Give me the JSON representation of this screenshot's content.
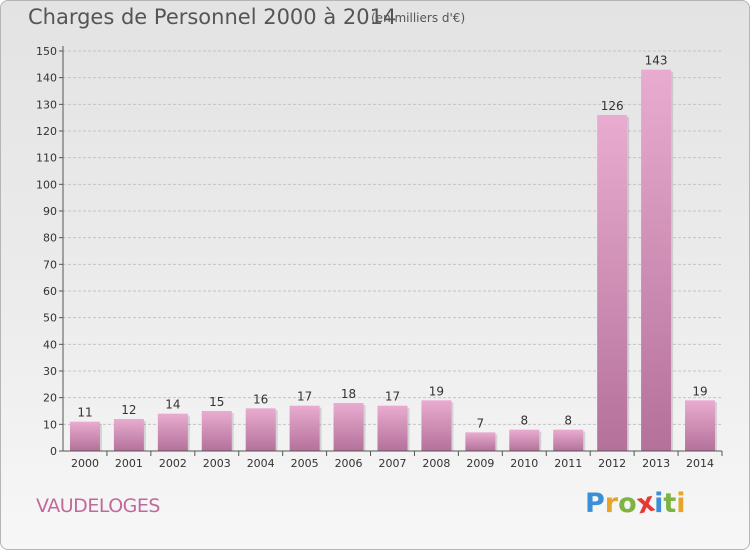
{
  "header": {
    "title": "Charges de Personnel 2000 à 2014",
    "subtitle": "(en milliers d'€)"
  },
  "footer": {
    "commune": "VAUDELOGES",
    "logo": "Proxiti"
  },
  "colors": {
    "bar_top": "#e9acd0",
    "bar_bottom": "#b4719a",
    "commune_text": "#c06a9c"
  },
  "chart_data": {
    "type": "bar",
    "categories": [
      "2000",
      "2001",
      "2002",
      "2003",
      "2004",
      "2005",
      "2006",
      "2007",
      "2008",
      "2009",
      "2010",
      "2011",
      "2012",
      "2013",
      "2014"
    ],
    "values": [
      11,
      12,
      14,
      15,
      16,
      17,
      18,
      17,
      19,
      7,
      8,
      8,
      126,
      143,
      19
    ],
    "title": "Charges de Personnel 2000 à 2014",
    "subtitle": "(en milliers d'€)",
    "xlabel": "",
    "ylabel": "",
    "ylim": [
      0,
      150
    ],
    "yticks": [
      0,
      10,
      20,
      30,
      40,
      50,
      60,
      70,
      80,
      90,
      100,
      110,
      120,
      130,
      140,
      150
    ],
    "grid": true,
    "data_labels": true,
    "legend": "none"
  }
}
